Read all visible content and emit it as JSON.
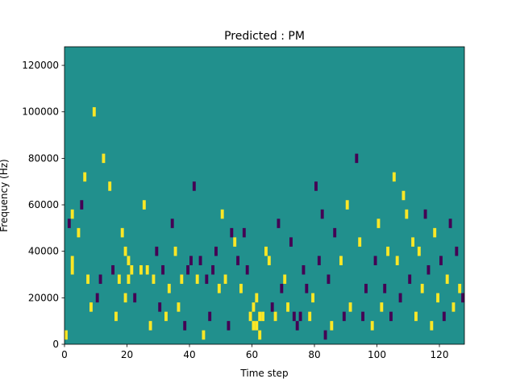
{
  "chart_data": {
    "type": "heatmap",
    "title": "Predicted : PM",
    "xlabel": "Time step",
    "ylabel": "Frequency (Hz)",
    "xlim": [
      0,
      128
    ],
    "ylim": [
      0,
      128000
    ],
    "x_ticks": [
      0,
      20,
      40,
      60,
      80,
      100,
      120
    ],
    "y_ticks": [
      0,
      20000,
      40000,
      60000,
      80000,
      100000,
      120000
    ],
    "x_tick_labels": [
      "0",
      "20",
      "40",
      "60",
      "80",
      "100",
      "120"
    ],
    "y_tick_labels": [
      "0",
      "20000",
      "40000",
      "60000",
      "80000",
      "100000",
      "120000"
    ],
    "grid": false,
    "colorscale": {
      "low": "#440154",
      "mid": "#21908d",
      "high": "#fde725"
    },
    "baseline_value": 0,
    "bin_height": 4000,
    "cells": [
      [
        0.5,
        4000,
        1
      ],
      [
        1.5,
        52000,
        -1
      ],
      [
        2.5,
        32000,
        1
      ],
      [
        2.5,
        36000,
        1
      ],
      [
        2.5,
        56000,
        1
      ],
      [
        4.5,
        48000,
        1
      ],
      [
        5.5,
        60000,
        -1
      ],
      [
        6.5,
        72000,
        1
      ],
      [
        7.5,
        28000,
        1
      ],
      [
        8.5,
        16000,
        1
      ],
      [
        9.5,
        100000,
        1
      ],
      [
        10.5,
        20000,
        -1
      ],
      [
        11.5,
        28000,
        -1
      ],
      [
        12.5,
        80000,
        1
      ],
      [
        14.5,
        68000,
        1
      ],
      [
        15.5,
        32000,
        -1
      ],
      [
        16.5,
        12000,
        1
      ],
      [
        17.5,
        28000,
        1
      ],
      [
        18.5,
        48000,
        1
      ],
      [
        19.5,
        40000,
        1
      ],
      [
        19.5,
        20000,
        1
      ],
      [
        20.5,
        36000,
        1
      ],
      [
        20.5,
        28000,
        1
      ],
      [
        21.5,
        32000,
        1
      ],
      [
        22.5,
        20000,
        -1
      ],
      [
        24.5,
        32000,
        1
      ],
      [
        25.5,
        60000,
        1
      ],
      [
        26.5,
        32000,
        1
      ],
      [
        27.5,
        8000,
        1
      ],
      [
        28.5,
        28000,
        1
      ],
      [
        29.5,
        40000,
        -1
      ],
      [
        30.5,
        16000,
        -1
      ],
      [
        31.5,
        32000,
        -1
      ],
      [
        32.5,
        12000,
        1
      ],
      [
        33.5,
        24000,
        1
      ],
      [
        34.5,
        52000,
        -1
      ],
      [
        35.5,
        40000,
        1
      ],
      [
        36.5,
        16000,
        1
      ],
      [
        37.5,
        28000,
        1
      ],
      [
        38.5,
        8000,
        -1
      ],
      [
        39.5,
        32000,
        -1
      ],
      [
        40.5,
        36000,
        -1
      ],
      [
        41.5,
        68000,
        -1
      ],
      [
        42.5,
        28000,
        1
      ],
      [
        43.5,
        36000,
        -1
      ],
      [
        44.5,
        4000,
        1
      ],
      [
        45.5,
        28000,
        -1
      ],
      [
        46.5,
        12000,
        -1
      ],
      [
        47.5,
        32000,
        -1
      ],
      [
        48.5,
        40000,
        -1
      ],
      [
        49.5,
        24000,
        1
      ],
      [
        50.5,
        56000,
        1
      ],
      [
        51.5,
        28000,
        1
      ],
      [
        52.5,
        8000,
        -1
      ],
      [
        53.5,
        48000,
        -1
      ],
      [
        54.5,
        44000,
        1
      ],
      [
        55.5,
        36000,
        -1
      ],
      [
        56.5,
        24000,
        1
      ],
      [
        57.5,
        48000,
        -1
      ],
      [
        58.5,
        32000,
        -1
      ],
      [
        59.5,
        12000,
        1
      ],
      [
        60.5,
        8000,
        1
      ],
      [
        60.5,
        16000,
        1
      ],
      [
        61.5,
        8000,
        1
      ],
      [
        61.5,
        20000,
        1
      ],
      [
        62.5,
        4000,
        1
      ],
      [
        62.5,
        12000,
        1
      ],
      [
        63.5,
        12000,
        1
      ],
      [
        64.5,
        40000,
        1
      ],
      [
        65.5,
        36000,
        1
      ],
      [
        66.5,
        16000,
        -1
      ],
      [
        67.5,
        12000,
        1
      ],
      [
        68.5,
        52000,
        -1
      ],
      [
        69.5,
        24000,
        -1
      ],
      [
        70.5,
        28000,
        1
      ],
      [
        71.5,
        16000,
        1
      ],
      [
        72.5,
        44000,
        -1
      ],
      [
        73.5,
        12000,
        -1
      ],
      [
        74.5,
        8000,
        -1
      ],
      [
        75.5,
        12000,
        -1
      ],
      [
        76.5,
        32000,
        -1
      ],
      [
        77.5,
        24000,
        -1
      ],
      [
        78.5,
        12000,
        1
      ],
      [
        79.5,
        20000,
        1
      ],
      [
        80.5,
        68000,
        -1
      ],
      [
        81.5,
        36000,
        -1
      ],
      [
        82.5,
        56000,
        -1
      ],
      [
        83.5,
        4000,
        -1
      ],
      [
        84.5,
        28000,
        -1
      ],
      [
        85.5,
        8000,
        1
      ],
      [
        86.5,
        48000,
        -1
      ],
      [
        88.5,
        36000,
        1
      ],
      [
        89.5,
        12000,
        -1
      ],
      [
        90.5,
        60000,
        1
      ],
      [
        91.5,
        16000,
        1
      ],
      [
        93.5,
        80000,
        -1
      ],
      [
        94.5,
        44000,
        1
      ],
      [
        95.5,
        12000,
        -1
      ],
      [
        96.5,
        24000,
        -1
      ],
      [
        98.5,
        8000,
        1
      ],
      [
        99.5,
        36000,
        -1
      ],
      [
        100.5,
        52000,
        1
      ],
      [
        101.5,
        16000,
        1
      ],
      [
        102.5,
        24000,
        -1
      ],
      [
        103.5,
        40000,
        1
      ],
      [
        104.5,
        12000,
        -1
      ],
      [
        105.5,
        72000,
        1
      ],
      [
        106.5,
        36000,
        1
      ],
      [
        107.5,
        20000,
        -1
      ],
      [
        108.5,
        64000,
        1
      ],
      [
        109.5,
        56000,
        1
      ],
      [
        110.5,
        28000,
        -1
      ],
      [
        111.5,
        44000,
        1
      ],
      [
        112.5,
        12000,
        1
      ],
      [
        113.5,
        40000,
        1
      ],
      [
        114.5,
        24000,
        1
      ],
      [
        115.5,
        56000,
        -1
      ],
      [
        116.5,
        32000,
        -1
      ],
      [
        117.5,
        8000,
        1
      ],
      [
        118.5,
        48000,
        1
      ],
      [
        119.5,
        20000,
        1
      ],
      [
        120.5,
        36000,
        -1
      ],
      [
        121.5,
        12000,
        -1
      ],
      [
        122.5,
        28000,
        1
      ],
      [
        123.5,
        52000,
        -1
      ],
      [
        124.5,
        16000,
        1
      ],
      [
        125.5,
        40000,
        -1
      ],
      [
        126.5,
        24000,
        1
      ],
      [
        127.5,
        20000,
        -1
      ]
    ]
  }
}
